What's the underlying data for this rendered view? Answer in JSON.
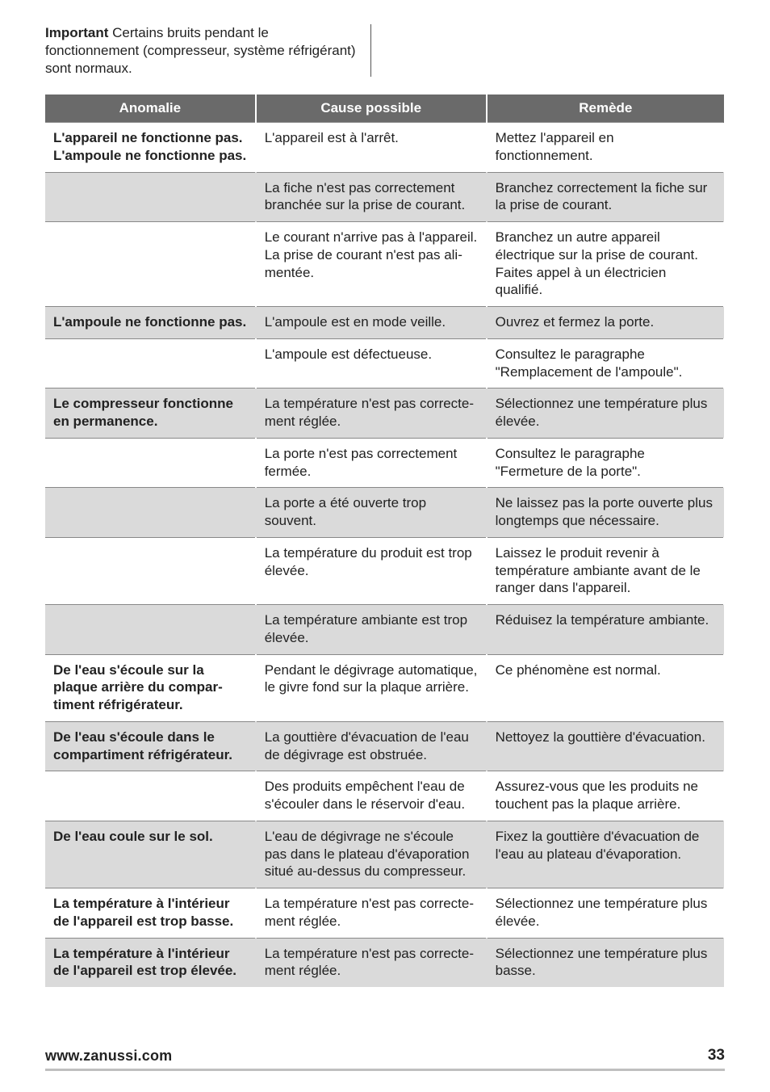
{
  "intro": {
    "strong": "Important",
    "rest": " Certains bruits pendant le fonctionnement (compresseur, système réfrigérant) sont normaux."
  },
  "headers": {
    "anomalie": "Anomalie",
    "cause": "Cause possible",
    "remede": "Remède"
  },
  "rows": [
    {
      "shade": "w",
      "anomalie": "L'appareil ne fonctionne pas. L'ampoule ne fonc­tionne pas.",
      "cause": "L'appareil est à l'arrêt.",
      "remede": "Mettez l'appareil en fonctionnement."
    },
    {
      "shade": "g",
      "anomalie": "",
      "cause": "La fiche n'est pas correctement branchée sur la prise de courant.",
      "remede": "Branchez correctement la fiche sur la prise de courant."
    },
    {
      "shade": "w",
      "anomalie": "",
      "cause": "Le courant n'arrive pas à l'appareil. La prise de courant n'est pas ali­mentée.",
      "remede": "Branchez un autre appareil électrique sur la prise de courant.\nFaites appel à un électricien qualifié."
    },
    {
      "shade": "g",
      "anomalie": "L'ampoule ne fonctionne pas.",
      "cause": "L'ampoule est en mode veille.",
      "remede": "Ouvrez et fermez la porte."
    },
    {
      "shade": "w",
      "anomalie": "",
      "cause": "L'ampoule est défectueuse.",
      "remede": "Consultez le paragraphe \"Remplace­ment de l'ampoule\"."
    },
    {
      "shade": "g",
      "anomalie": "Le compresseur fonction­ne en permanence.",
      "cause": "La température n'est pas correcte­ment réglée.",
      "remede": "Sélectionnez une température plus élevée."
    },
    {
      "shade": "w",
      "anomalie": "",
      "cause": "La porte n'est pas correctement fermée.",
      "remede": "Consultez le paragraphe \"Fermeture de la porte\"."
    },
    {
      "shade": "g",
      "anomalie": "",
      "cause": "La porte a été ouverte trop souvent.",
      "remede": "Ne laissez pas la porte ouverte plus longtemps que nécessaire."
    },
    {
      "shade": "w",
      "anomalie": "",
      "cause": "La température du produit est trop élevée.",
      "remede": "Laissez le produit revenir à tempéra­ture ambiante avant de le ranger dans l'appareil."
    },
    {
      "shade": "g",
      "anomalie": "",
      "cause": "La température ambiante est trop élevée.",
      "remede": "Réduisez la température ambiante."
    },
    {
      "shade": "w",
      "anomalie": "De l'eau s'écoule sur la plaque arrière du compar­timent réfrigérateur.",
      "cause": "Pendant le dégivrage automatique, le givre fond sur la plaque arrière.",
      "remede": "Ce phénomène est normal."
    },
    {
      "shade": "g",
      "anomalie": "De l'eau s'écoule dans le compartiment réfrigéra­teur.",
      "cause": "La gouttière d'évacuation de l'eau de dégivrage est obstruée.",
      "remede": "Nettoyez la gouttière d'évacuation."
    },
    {
      "shade": "w",
      "anomalie": "",
      "cause": "Des produits empêchent l'eau de s'écouler dans le réservoir d'eau.",
      "remede": "Assurez-vous que les produits ne touchent pas la plaque arrière."
    },
    {
      "shade": "g",
      "anomalie": "De l'eau coule sur le sol.",
      "cause": "L'eau de dégivrage ne s'écoule pas dans le plateau d'évaporation situé au-dessus du compresseur.",
      "remede": "Fixez la gouttière d'évacuation de l'eau au plateau d'évaporation."
    },
    {
      "shade": "w",
      "anomalie": "La température à l'intérieur de l'appareil est trop bas­se.",
      "cause": "La température n'est pas correcte­ment réglée.",
      "remede": "Sélectionnez une température plus élevée."
    },
    {
      "shade": "g",
      "anomalie": "La température à l'intérieur de l'appareil est trop éle­vée.",
      "cause": "La température n'est pas correcte­ment réglée.",
      "remede": "Sélectionnez une température plus basse."
    }
  ],
  "footer": {
    "site": "www.zanussi.com",
    "page": "33"
  }
}
